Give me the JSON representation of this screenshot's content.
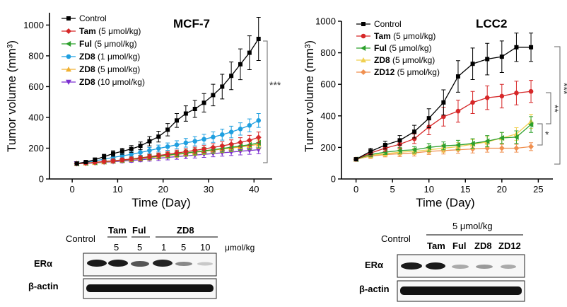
{
  "chart_data": [
    {
      "type": "line",
      "title": "MCF-7",
      "xlabel": "Time (Day)",
      "ylabel": "Tumor volume (mm³)",
      "xlim": [
        -5,
        44
      ],
      "ylim": [
        0,
        1080
      ],
      "xticks": [
        0,
        10,
        20,
        30,
        40
      ],
      "yticks": [
        0,
        200,
        400,
        600,
        800,
        1000
      ],
      "legend_position": "top-left",
      "x": [
        1,
        3,
        5,
        7,
        9,
        11,
        13,
        15,
        17,
        19,
        21,
        23,
        25,
        27,
        29,
        31,
        33,
        35,
        37,
        39,
        41
      ],
      "series": [
        {
          "name": "Control",
          "dose": "",
          "color": "#000000",
          "marker": "square",
          "values": [
            100,
            110,
            125,
            145,
            165,
            180,
            195,
            215,
            245,
            275,
            320,
            380,
            425,
            455,
            495,
            545,
            600,
            670,
            745,
            820,
            910
          ],
          "errors": [
            8,
            10,
            12,
            15,
            18,
            20,
            22,
            25,
            30,
            35,
            40,
            45,
            50,
            55,
            60,
            70,
            80,
            90,
            100,
            110,
            140
          ]
        },
        {
          "name": "Tam",
          "dose": "(5 μmol/kg)",
          "color": "#d62728",
          "marker": "diamond",
          "values": [
            100,
            103,
            108,
            113,
            118,
            124,
            130,
            137,
            145,
            153,
            161,
            169,
            177,
            186,
            195,
            205,
            215,
            226,
            238,
            251,
            270
          ],
          "errors": [
            8,
            8,
            9,
            10,
            11,
            12,
            13,
            14,
            15,
            16,
            17,
            18,
            19,
            20,
            22,
            24,
            26,
            28,
            30,
            32,
            35
          ]
        },
        {
          "name": "Ful",
          "dose": "(5 μmol/kg)",
          "color": "#2ca02c",
          "marker": "triangle-left",
          "values": [
            100,
            103,
            107,
            112,
            117,
            122,
            128,
            134,
            141,
            148,
            155,
            162,
            169,
            176,
            183,
            190,
            198,
            206,
            214,
            222,
            235
          ],
          "errors": [
            8,
            8,
            9,
            10,
            11,
            12,
            13,
            14,
            15,
            16,
            17,
            18,
            19,
            20,
            21,
            22,
            24,
            26,
            28,
            30,
            32
          ]
        },
        {
          "name": "ZD8",
          "dose": "(1 μmol/kg)",
          "color": "#1f9fe0",
          "marker": "circle",
          "values": [
            100,
            108,
            118,
            128,
            140,
            150,
            160,
            172,
            185,
            198,
            210,
            222,
            235,
            245,
            258,
            272,
            288,
            305,
            325,
            348,
            380
          ],
          "errors": [
            8,
            9,
            10,
            12,
            13,
            14,
            16,
            18,
            20,
            22,
            24,
            26,
            28,
            30,
            32,
            34,
            36,
            38,
            40,
            42,
            45
          ]
        },
        {
          "name": "ZD8",
          "dose": "(5 μmol/kg)",
          "color": "#f0b030",
          "marker": "triangle-up",
          "values": [
            100,
            102,
            106,
            110,
            115,
            120,
            126,
            132,
            138,
            145,
            152,
            159,
            166,
            173,
            180,
            187,
            194,
            201,
            208,
            216,
            225
          ],
          "errors": [
            8,
            8,
            9,
            10,
            11,
            12,
            13,
            14,
            15,
            16,
            17,
            18,
            19,
            20,
            21,
            22,
            23,
            24,
            25,
            26,
            28
          ]
        },
        {
          "name": "ZD8",
          "dose": "(10 μmol/kg)",
          "color": "#7b2fd0",
          "marker": "triangle-down",
          "values": [
            100,
            101,
            104,
            108,
            112,
            116,
            120,
            125,
            130,
            135,
            140,
            145,
            150,
            155,
            160,
            165,
            170,
            175,
            180,
            185,
            190
          ],
          "errors": [
            8,
            8,
            8,
            9,
            10,
            11,
            12,
            13,
            14,
            15,
            16,
            17,
            18,
            19,
            20,
            21,
            22,
            23,
            24,
            25,
            26
          ]
        }
      ],
      "significance": "***"
    },
    {
      "type": "line",
      "title": "LCC2",
      "xlabel": "Time (Day)",
      "ylabel": "Tumor volume (mm³)",
      "xlim": [
        -2,
        27
      ],
      "ylim": [
        0,
        1000
      ],
      "xticks": [
        0,
        5,
        10,
        15,
        20,
        25
      ],
      "yticks": [
        0,
        200,
        400,
        600,
        800,
        1000
      ],
      "legend_position": "top-left",
      "x": [
        0,
        2,
        4,
        6,
        8,
        10,
        12,
        14,
        16,
        18,
        20,
        22,
        24
      ],
      "series": [
        {
          "name": "Control",
          "dose": "",
          "color": "#000000",
          "marker": "square",
          "values": [
            125,
            175,
            215,
            245,
            300,
            385,
            485,
            650,
            730,
            760,
            775,
            835,
            835
          ],
          "errors": [
            10,
            20,
            25,
            30,
            40,
            60,
            80,
            100,
            100,
            100,
            100,
            90,
            90
          ]
        },
        {
          "name": "Tam",
          "dose": "(5 μmol/kg)",
          "color": "#d62728",
          "marker": "circle",
          "values": [
            125,
            165,
            195,
            220,
            255,
            330,
            395,
            430,
            485,
            515,
            525,
            545,
            555
          ],
          "errors": [
            10,
            20,
            20,
            25,
            30,
            50,
            60,
            70,
            70,
            75,
            75,
            75,
            70
          ]
        },
        {
          "name": "Ful",
          "dose": "(5 μmol/kg)",
          "color": "#2ca02c",
          "marker": "triangle-left",
          "values": [
            125,
            155,
            170,
            180,
            185,
            200,
            210,
            215,
            225,
            240,
            260,
            265,
            345
          ],
          "errors": [
            10,
            15,
            15,
            20,
            20,
            25,
            25,
            30,
            30,
            35,
            35,
            40,
            50
          ]
        },
        {
          "name": "ZD8",
          "dose": "(5 μmol/kg)",
          "color": "#f0d050",
          "marker": "triangle-up",
          "values": [
            125,
            150,
            160,
            170,
            175,
            185,
            195,
            205,
            220,
            235,
            260,
            285,
            365
          ],
          "errors": [
            10,
            15,
            15,
            18,
            20,
            22,
            25,
            25,
            30,
            32,
            35,
            40,
            45
          ]
        },
        {
          "name": "ZD12",
          "dose": "(5 μmol/kg)",
          "color": "#f09050",
          "marker": "diamond",
          "values": [
            125,
            145,
            155,
            160,
            165,
            175,
            180,
            185,
            190,
            195,
            195,
            195,
            205
          ],
          "errors": [
            10,
            15,
            15,
            18,
            20,
            20,
            22,
            22,
            25,
            25,
            25,
            25,
            25
          ]
        }
      ],
      "significance": [
        "***",
        "**",
        "*"
      ]
    }
  ],
  "blots": {
    "left": {
      "control_label": "Control",
      "lanes": [
        "Tam",
        "Ful",
        "ZD8"
      ],
      "doses": [
        "5",
        "5",
        "1",
        "5",
        "10"
      ],
      "unit": "μmol/kg",
      "rows": [
        "ERα",
        "β-actin"
      ]
    },
    "right": {
      "dose_header": "5 μmol/kg",
      "control_label": "Control",
      "lanes": [
        "Tam",
        "Ful",
        "ZD8",
        "ZD12"
      ],
      "rows": [
        "ERα",
        "β-actin"
      ]
    }
  }
}
